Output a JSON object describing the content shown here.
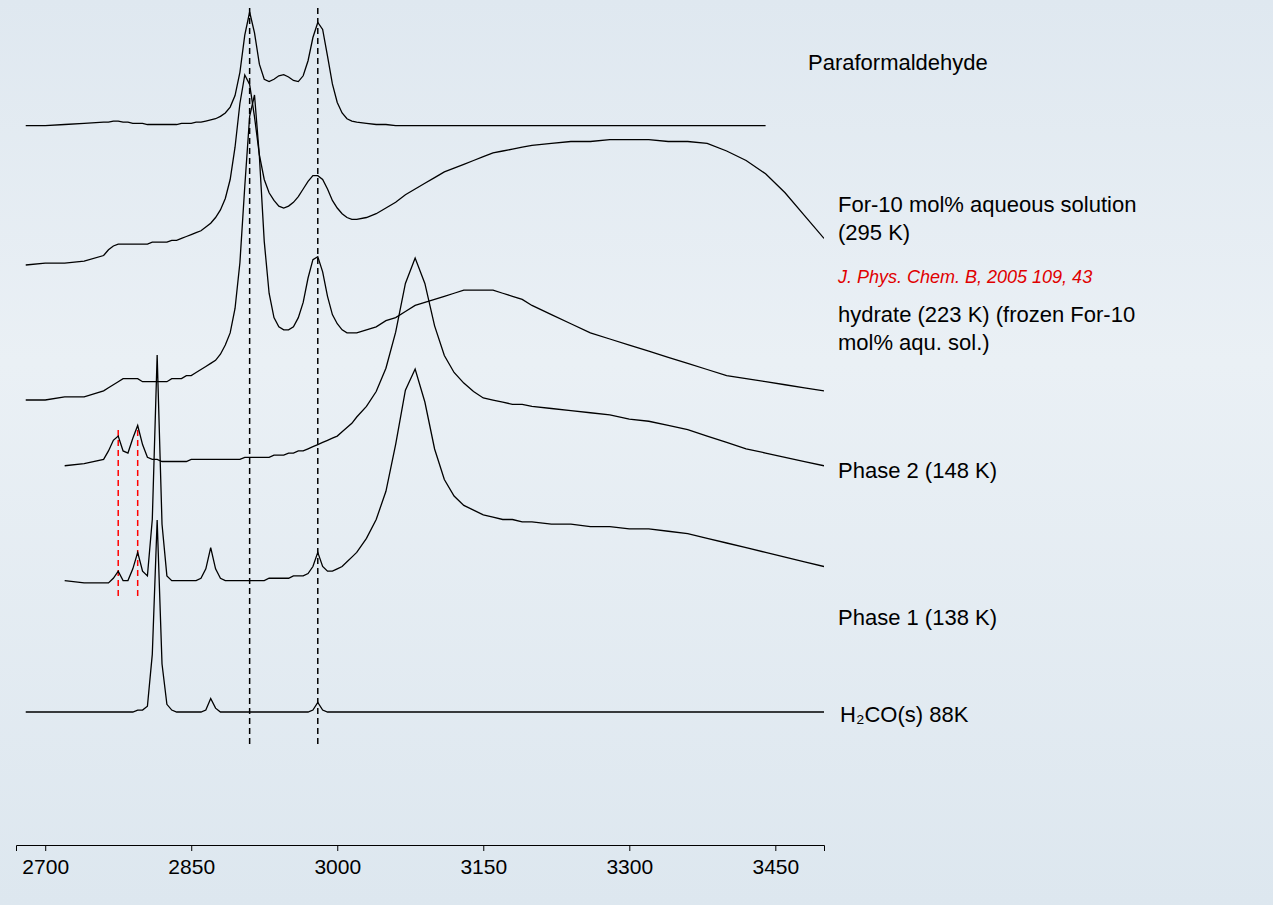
{
  "chart_data": {
    "type": "line",
    "x": [
      2680,
      2700,
      2720,
      2740,
      2760,
      2765,
      2770,
      2775,
      2780,
      2785,
      2790,
      2795,
      2800,
      2805,
      2810,
      2815,
      2820,
      2825,
      2830,
      2835,
      2840,
      2845,
      2850,
      2855,
      2860,
      2865,
      2870,
      2875,
      2880,
      2885,
      2890,
      2895,
      2900,
      2905,
      2910,
      2915,
      2920,
      2925,
      2930,
      2935,
      2940,
      2945,
      2950,
      2955,
      2960,
      2965,
      2970,
      2975,
      2980,
      2985,
      2990,
      2995,
      3000,
      3005,
      3010,
      3015,
      3020,
      3030,
      3040,
      3050,
      3060,
      3070,
      3080,
      3090,
      3100,
      3110,
      3120,
      3130,
      3140,
      3150,
      3160,
      3170,
      3180,
      3190,
      3200,
      3220,
      3240,
      3260,
      3280,
      3300,
      3320,
      3340,
      3360,
      3380,
      3400,
      3420,
      3440,
      3460,
      3480,
      3500
    ],
    "xlim": [
      2670,
      3500
    ],
    "xticks": [
      2700,
      2850,
      3000,
      3150,
      3300,
      3450
    ],
    "ylim": [
      0,
      1
    ],
    "tick_labels": "x",
    "grid": false,
    "series": [
      {
        "name": "Paraformaldehyde",
        "color": "#000000",
        "values": [
          0.02,
          0.02,
          0.03,
          0.04,
          0.05,
          0.05,
          0.06,
          0.06,
          0.05,
          0.05,
          0.04,
          0.04,
          0.04,
          0.03,
          0.03,
          0.03,
          0.03,
          0.03,
          0.03,
          0.03,
          0.04,
          0.04,
          0.04,
          0.05,
          0.05,
          0.06,
          0.07,
          0.08,
          0.1,
          0.13,
          0.18,
          0.28,
          0.48,
          0.8,
          1.0,
          0.82,
          0.55,
          0.42,
          0.4,
          0.42,
          0.45,
          0.46,
          0.44,
          0.41,
          0.4,
          0.45,
          0.58,
          0.78,
          0.91,
          0.85,
          0.62,
          0.38,
          0.22,
          0.13,
          0.08,
          0.06,
          0.05,
          0.04,
          0.03,
          0.03,
          0.02,
          0.02,
          0.02,
          0.02,
          0.02,
          0.02,
          0.02,
          0.02,
          0.02,
          0.02,
          0.02,
          0.02,
          0.02,
          0.02,
          0.02,
          0.02,
          0.02,
          0.02,
          0.02,
          0.02,
          0.02,
          0.02,
          0.02,
          0.02,
          0.02,
          0.02,
          0.02,
          null,
          null,
          null
        ]
      },
      {
        "name": "For-10 mol% aqueous solution (295 K)",
        "color": "#000000",
        "values": [
          0,
          0.01,
          0.01,
          0.02,
          0.05,
          0.08,
          0.1,
          0.11,
          0.11,
          0.11,
          0.11,
          0.11,
          0.11,
          0.11,
          0.12,
          0.12,
          0.12,
          0.12,
          0.13,
          0.13,
          0.14,
          0.15,
          0.16,
          0.17,
          0.18,
          0.2,
          0.22,
          0.25,
          0.29,
          0.35,
          0.45,
          0.62,
          0.85,
          1.0,
          0.95,
          0.78,
          0.58,
          0.45,
          0.38,
          0.34,
          0.31,
          0.3,
          0.31,
          0.33,
          0.36,
          0.4,
          0.44,
          0.47,
          0.47,
          0.45,
          0.4,
          0.34,
          0.3,
          0.27,
          0.25,
          0.24,
          0.24,
          0.25,
          0.27,
          0.3,
          0.33,
          0.37,
          0.4,
          0.43,
          0.46,
          0.49,
          0.51,
          0.53,
          0.55,
          0.57,
          0.59,
          0.6,
          0.61,
          0.62,
          0.63,
          0.64,
          0.65,
          0.65,
          0.66,
          0.66,
          0.66,
          0.65,
          0.65,
          0.64,
          0.6,
          0.55,
          0.48,
          0.38,
          0.26,
          0.14
        ]
      },
      {
        "name": "hydrate (223 K) (frozen For-10 mol% aqu. sol.)",
        "color": "#000000",
        "values": [
          0,
          0,
          0.01,
          0.01,
          0.03,
          0.04,
          0.05,
          0.06,
          0.07,
          0.07,
          0.07,
          0.07,
          0.06,
          0.06,
          0.06,
          0.06,
          0.06,
          0.06,
          0.07,
          0.07,
          0.07,
          0.08,
          0.08,
          0.09,
          0.1,
          0.11,
          0.12,
          0.13,
          0.15,
          0.18,
          0.22,
          0.3,
          0.45,
          0.7,
          0.93,
          1.0,
          0.8,
          0.52,
          0.35,
          0.27,
          0.24,
          0.23,
          0.23,
          0.24,
          0.27,
          0.32,
          0.4,
          0.46,
          0.47,
          0.42,
          0.34,
          0.28,
          0.25,
          0.23,
          0.22,
          0.22,
          0.22,
          0.23,
          0.24,
          0.26,
          0.27,
          0.29,
          0.31,
          0.32,
          0.33,
          0.34,
          0.35,
          0.36,
          0.36,
          0.36,
          0.36,
          0.35,
          0.34,
          0.33,
          0.31,
          0.28,
          0.25,
          0.22,
          0.2,
          0.18,
          0.16,
          0.14,
          0.12,
          0.1,
          0.08,
          0.07,
          0.06,
          0.05,
          0.04,
          0.03
        ]
      },
      {
        "name": "Phase 2 (148 K)",
        "color": "#000000",
        "values": [
          null,
          null,
          0.02,
          0.03,
          0.05,
          0.09,
          0.14,
          0.16,
          0.09,
          0.08,
          0.15,
          0.21,
          0.12,
          0.06,
          0.05,
          0.05,
          0.04,
          0.04,
          0.04,
          0.04,
          0.04,
          0.04,
          0.05,
          0.05,
          0.05,
          0.05,
          0.05,
          0.05,
          0.05,
          0.05,
          0.05,
          0.05,
          0.05,
          0.06,
          0.06,
          0.06,
          0.06,
          0.06,
          0.06,
          0.07,
          0.07,
          0.07,
          0.08,
          0.08,
          0.09,
          0.09,
          0.1,
          0.11,
          0.12,
          0.13,
          0.14,
          0.15,
          0.16,
          0.18,
          0.2,
          0.22,
          0.25,
          0.3,
          0.37,
          0.48,
          0.65,
          0.88,
          1.0,
          0.88,
          0.68,
          0.54,
          0.46,
          0.41,
          0.37,
          0.34,
          0.33,
          0.32,
          0.31,
          0.31,
          0.3,
          0.29,
          0.28,
          0.27,
          0.26,
          0.24,
          0.23,
          0.21,
          0.19,
          0.16,
          0.13,
          0.1,
          0.08,
          0.06,
          0.04,
          0.02
        ]
      },
      {
        "name": "Phase 1 (138 K)",
        "color": "#000000",
        "values": [
          null,
          null,
          0.04,
          0.03,
          0.03,
          0.03,
          0.05,
          0.08,
          0.04,
          0.04,
          0.09,
          0.16,
          0.08,
          0.06,
          0.3,
          1.0,
          0.28,
          0.06,
          0.04,
          0.04,
          0.04,
          0.04,
          0.04,
          0.04,
          0.05,
          0.09,
          0.18,
          0.09,
          0.05,
          0.04,
          0.04,
          0.04,
          0.04,
          0.04,
          0.04,
          0.04,
          0.04,
          0.04,
          0.05,
          0.05,
          0.05,
          0.05,
          0.05,
          0.06,
          0.06,
          0.06,
          0.07,
          0.1,
          0.16,
          0.1,
          0.08,
          0.08,
          0.09,
          0.1,
          0.12,
          0.14,
          0.16,
          0.22,
          0.3,
          0.42,
          0.62,
          0.85,
          0.94,
          0.8,
          0.6,
          0.47,
          0.4,
          0.36,
          0.34,
          0.32,
          0.31,
          0.3,
          0.3,
          0.29,
          0.29,
          0.28,
          0.28,
          0.27,
          0.27,
          0.26,
          0.26,
          0.25,
          0.24,
          0.22,
          0.2,
          0.18,
          0.16,
          0.14,
          0.12,
          0.1
        ]
      },
      {
        "name": "H₂CO(s) 88K",
        "color": "#000000",
        "values": [
          0,
          0,
          0,
          0,
          0,
          0,
          0,
          0,
          0,
          0,
          0,
          0.01,
          0.01,
          0.03,
          0.3,
          1.0,
          0.25,
          0.04,
          0.01,
          0,
          0,
          0,
          0,
          0,
          0,
          0.01,
          0.07,
          0.02,
          0,
          0,
          0,
          0,
          0,
          0,
          0,
          0,
          0,
          0,
          0,
          0,
          0,
          0,
          0,
          0,
          0,
          0,
          0,
          0.01,
          0.05,
          0.01,
          0,
          0,
          0,
          0,
          0,
          0,
          0,
          0,
          0,
          0,
          0,
          0,
          0,
          0,
          0,
          0,
          0,
          0,
          0,
          0,
          0,
          0,
          0,
          0,
          0,
          0,
          0,
          0,
          0,
          0,
          0,
          0,
          0,
          0,
          0,
          0,
          0,
          0,
          0,
          0
        ]
      }
    ],
    "vlines": [
      {
        "x": 2910,
        "color": "#000000",
        "line_style": "dashed"
      },
      {
        "x": 2980,
        "color": "#000000",
        "line_style": "dashed"
      },
      {
        "x": 2775,
        "color": "#ff0000",
        "line_style": "dashed"
      },
      {
        "x": 2795,
        "color": "#ff0000",
        "line_style": "dashed"
      }
    ],
    "annotations": [
      {
        "text": "J. Phys. Chem. B, 2005 109, 43",
        "color": "#e00000"
      }
    ]
  }
}
